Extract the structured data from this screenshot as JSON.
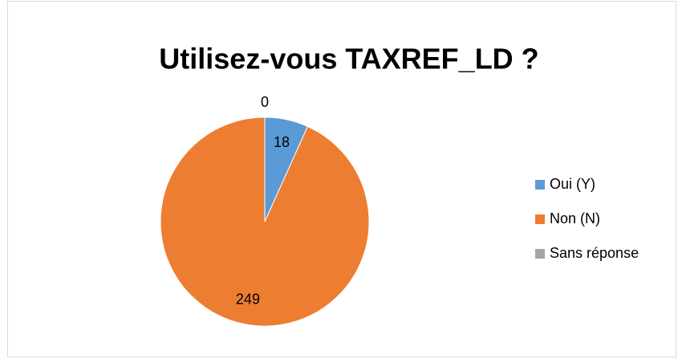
{
  "chart_data": {
    "type": "pie",
    "title": "Utilisez-vous TAXREF_LD ?",
    "categories": [
      "Oui (Y)",
      "Non (N)",
      "Sans réponse"
    ],
    "values": [
      18,
      249,
      0
    ],
    "colors": [
      "#5b9bd5",
      "#ed7d31",
      "#a5a5a5"
    ],
    "legend": "right"
  }
}
